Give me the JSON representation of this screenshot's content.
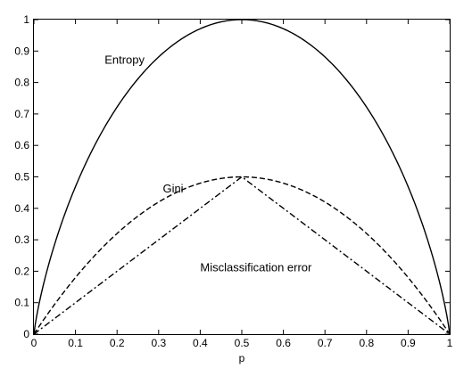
{
  "chart_data": {
    "type": "line",
    "xlabel": "p",
    "ylabel": "",
    "xlim": [
      0,
      1
    ],
    "ylim": [
      0,
      1
    ],
    "xticks": [
      0,
      0.1,
      0.2,
      0.3,
      0.4,
      0.5,
      0.6,
      0.7,
      0.8,
      0.9,
      1
    ],
    "xtick_labels": [
      "0",
      "0.1",
      "0.2",
      "0.3",
      "0.4",
      "0.5",
      "0.6",
      "0.7",
      "0.8",
      "0.9",
      "1"
    ],
    "yticks": [
      0,
      0.1,
      0.2,
      0.3,
      0.4,
      0.5,
      0.6,
      0.7,
      0.8,
      0.9,
      1
    ],
    "ytick_labels": [
      "0",
      "0.1",
      "0.2",
      "0.3",
      "0.4",
      "0.5",
      "0.6",
      "0.7",
      "0.8",
      "0.9",
      "1"
    ],
    "grid": false,
    "legend": "none",
    "x": [
      0,
      0.05,
      0.1,
      0.15,
      0.2,
      0.25,
      0.3,
      0.35,
      0.4,
      0.45,
      0.5,
      0.55,
      0.6,
      0.65,
      0.7,
      0.75,
      0.8,
      0.85,
      0.9,
      0.95,
      1
    ],
    "series": [
      {
        "name": "Entropy",
        "line_style": "solid",
        "color": "#000000",
        "values": [
          0,
          0.286,
          0.469,
          0.61,
          0.722,
          0.811,
          0.881,
          0.934,
          0.971,
          0.993,
          1,
          0.993,
          0.971,
          0.934,
          0.881,
          0.811,
          0.722,
          0.61,
          0.469,
          0.286,
          0
        ]
      },
      {
        "name": "Gini",
        "line_style": "dashed",
        "color": "#000000",
        "values": [
          0,
          0.095,
          0.18,
          0.255,
          0.32,
          0.375,
          0.42,
          0.455,
          0.48,
          0.495,
          0.5,
          0.495,
          0.48,
          0.455,
          0.42,
          0.375,
          0.32,
          0.255,
          0.18,
          0.095,
          0
        ]
      },
      {
        "name": "Misclassification error",
        "line_style": "dashdot",
        "color": "#000000",
        "values": [
          0,
          0.05,
          0.1,
          0.15,
          0.2,
          0.25,
          0.3,
          0.35,
          0.4,
          0.45,
          0.5,
          0.45,
          0.4,
          0.35,
          0.3,
          0.25,
          0.2,
          0.15,
          0.1,
          0.05,
          0
        ]
      }
    ],
    "annotations": [
      {
        "text": "Entropy",
        "series": 0,
        "x": 0.17,
        "y": 0.86
      },
      {
        "text": "Gini",
        "series": 1,
        "x": 0.31,
        "y": 0.45
      },
      {
        "text": "Misclassification error",
        "series": 2,
        "x": 0.4,
        "y": 0.2
      }
    ]
  }
}
